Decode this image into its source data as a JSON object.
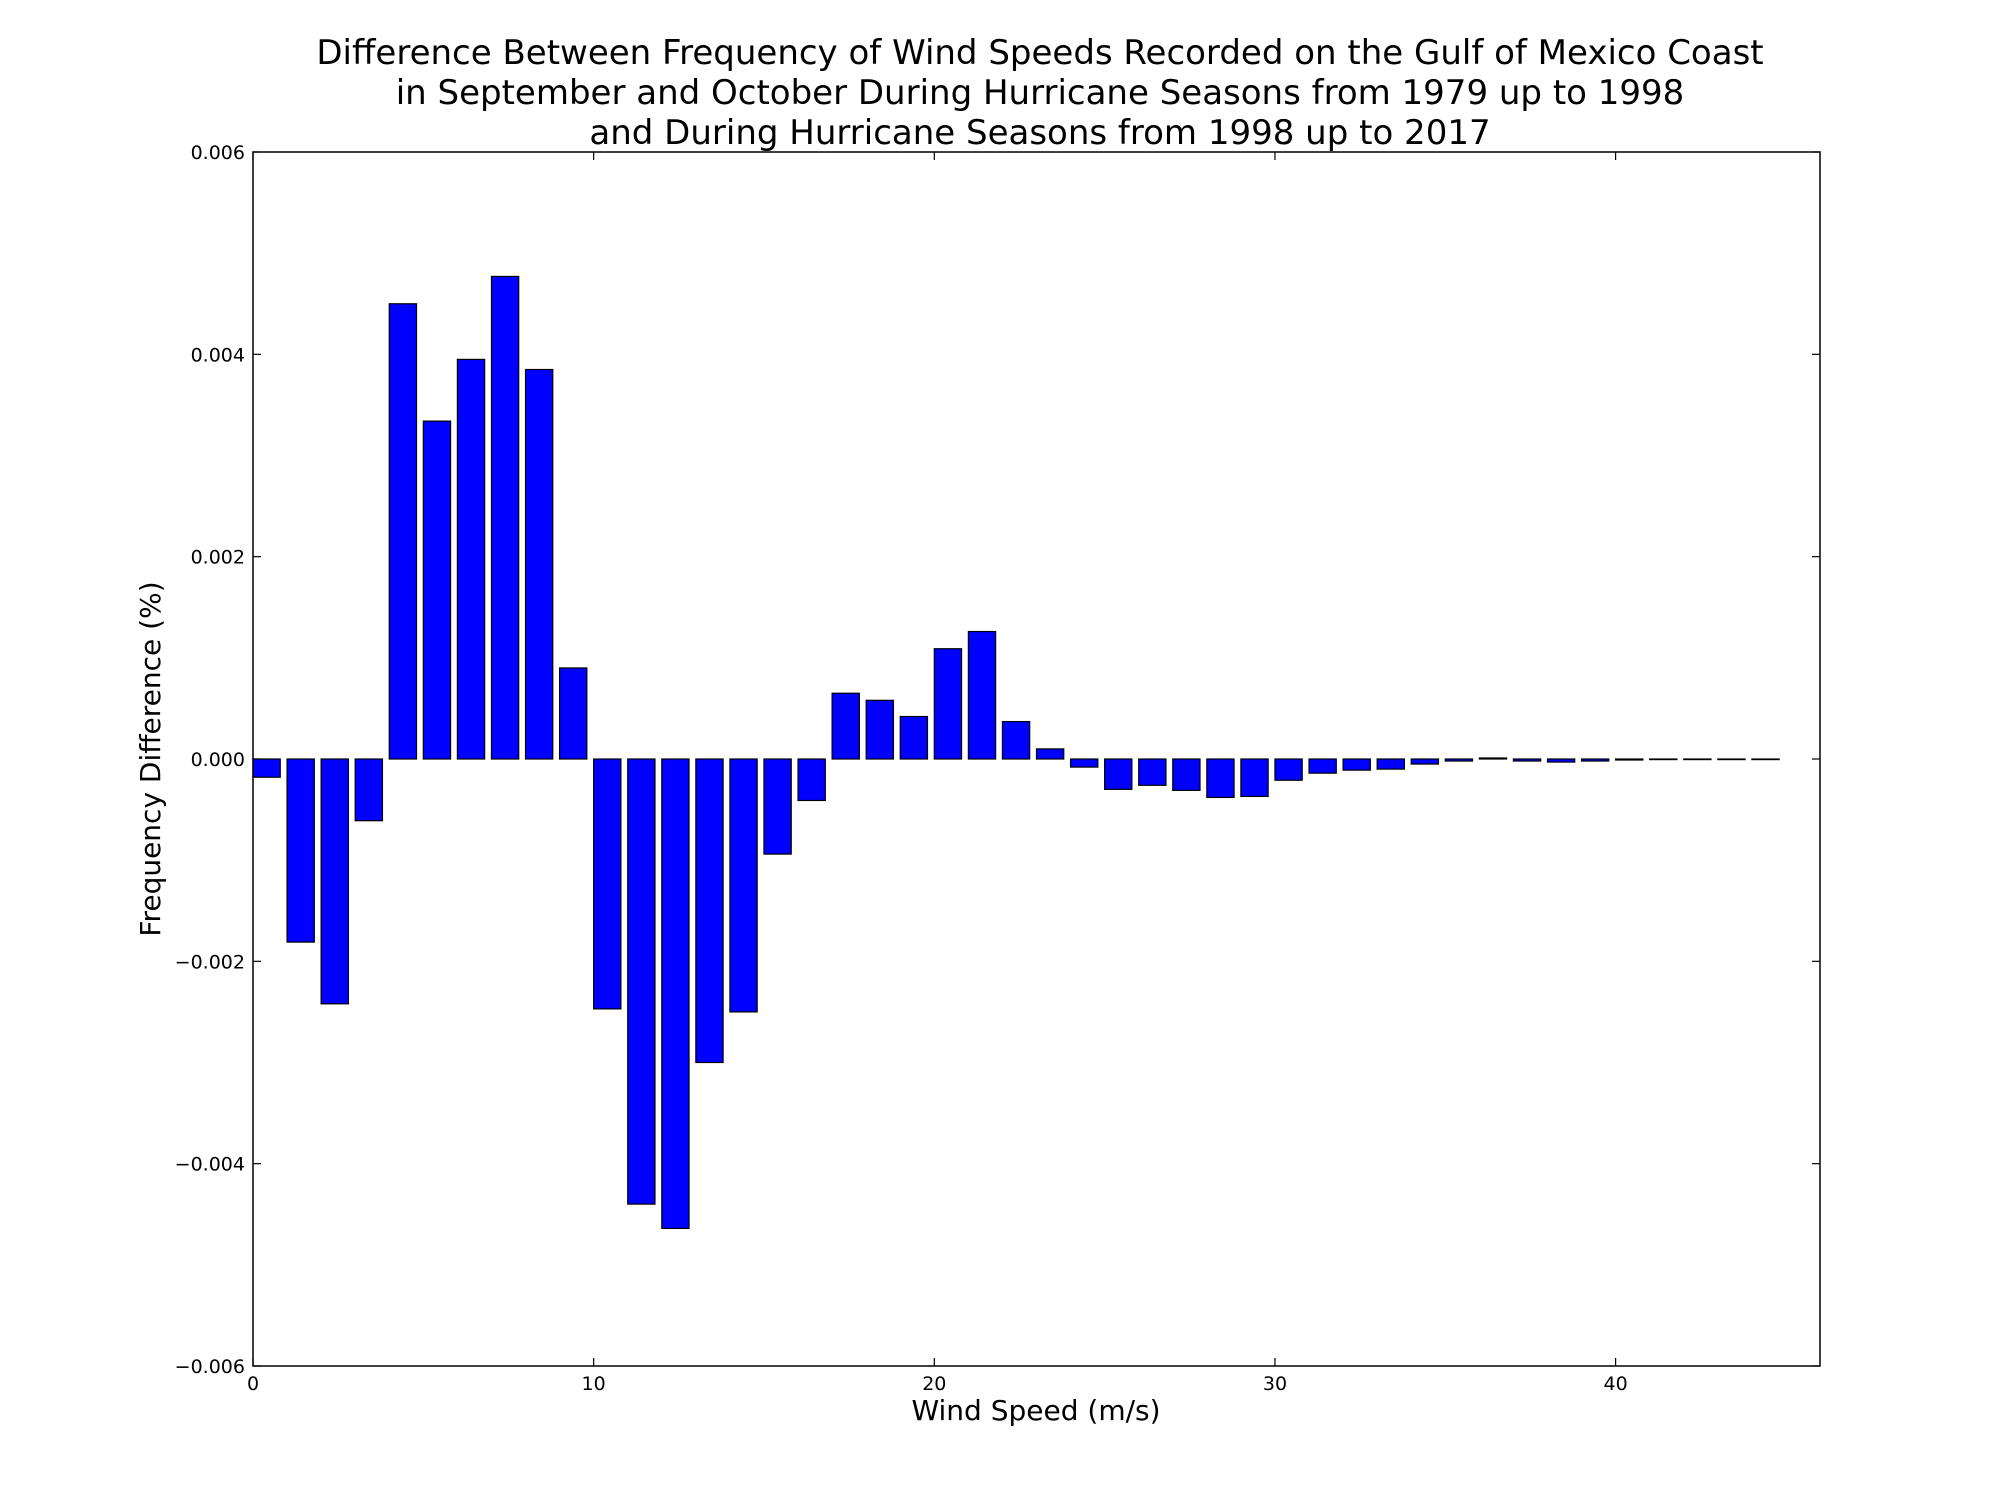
{
  "chart_data": {
    "type": "bar",
    "title_lines": [
      "Difference Between Frequency of Wind Speeds Recorded on the Gulf of Mexico Coast",
      "in September and October During Hurricane Seasons from 1979 up to 1998",
      "and During Hurricane Seasons from 1998 up to 2017"
    ],
    "xlabel": "Wind Speed (m/s)",
    "ylabel": "Frequency Difference (%)",
    "xlim": [
      0,
      46
    ],
    "ylim": [
      -0.006,
      0.006
    ],
    "xticks": [
      0,
      10,
      20,
      30,
      40
    ],
    "xtick_labels": [
      "0",
      "10",
      "20",
      "30",
      "40"
    ],
    "yticks": [
      0.006,
      0.004,
      0.002,
      0.0,
      -0.002,
      -0.004,
      -0.006
    ],
    "ytick_labels": [
      "0.006",
      "0.004",
      "0.002",
      "0.000",
      "−0.002",
      "−0.004",
      "−0.006"
    ],
    "bar_width": 0.8,
    "x": [
      0,
      1,
      2,
      3,
      4,
      5,
      6,
      7,
      8,
      9,
      10,
      11,
      12,
      13,
      14,
      15,
      16,
      17,
      18,
      19,
      20,
      21,
      22,
      23,
      24,
      25,
      26,
      27,
      28,
      29,
      30,
      31,
      32,
      33,
      34,
      35,
      36,
      37,
      38,
      39,
      40,
      41,
      42,
      43,
      44
    ],
    "values": [
      -0.00018,
      -0.00181,
      -0.00242,
      -0.00061,
      0.0045,
      0.00334,
      0.00395,
      0.00477,
      0.00385,
      0.0009,
      -0.00247,
      -0.0044,
      -0.00464,
      -0.003,
      -0.0025,
      -0.00094,
      -0.00041,
      0.00065,
      0.00058,
      0.00042,
      0.00109,
      0.00126,
      0.00037,
      0.0001,
      -8e-05,
      -0.0003,
      -0.00026,
      -0.00031,
      -0.00038,
      -0.00037,
      -0.00021,
      -0.00014,
      -0.00011,
      -0.0001,
      -5e-05,
      -2e-05,
      1e-05,
      -2e-05,
      -3e-05,
      -2e-05,
      -1e-05,
      0.0,
      0.0,
      0.0,
      0.0
    ],
    "bar_color": "#0000ff",
    "edge_color": "#000000",
    "grid": false,
    "legend": false
  }
}
